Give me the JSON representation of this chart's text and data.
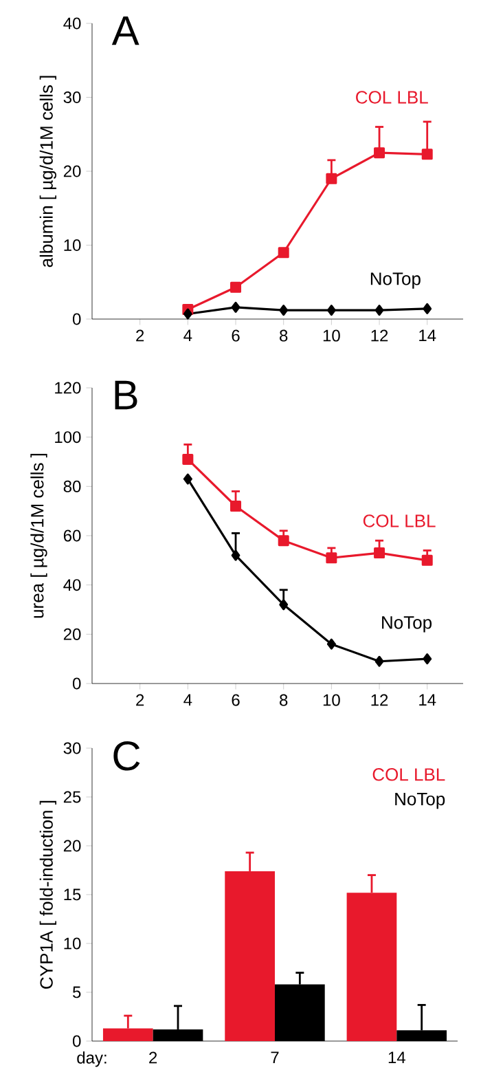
{
  "chart_data": [
    {
      "type": "line",
      "title": "A",
      "ylabel": "albumin  [ µg/d/1M cells ]",
      "x": [
        4,
        6,
        8,
        10,
        12,
        14
      ],
      "xlim": [
        0,
        15.5
      ],
      "xticks": [
        2,
        4,
        6,
        8,
        10,
        12,
        14
      ],
      "ylim": [
        0,
        40
      ],
      "yticks": [
        0,
        10,
        20,
        30,
        40
      ],
      "series": [
        {
          "name": "COL LBL",
          "color": "#e8192c",
          "marker": "square",
          "values": [
            1.3,
            4.3,
            9,
            19,
            22.5,
            22.3
          ],
          "errors": [
            null,
            null,
            null,
            [
              19,
              21.5
            ],
            [
              22.5,
              26
            ],
            [
              22.3,
              26.7
            ]
          ]
        },
        {
          "name": "NoTop",
          "color": "#000000",
          "marker": "diamond",
          "values": [
            0.7,
            1.6,
            1.2,
            1.2,
            1.2,
            1.4
          ]
        }
      ]
    },
    {
      "type": "line",
      "title": "B",
      "ylabel": "urea  [ µg/d/1M cells ]",
      "x": [
        4,
        6,
        8,
        10,
        12,
        14
      ],
      "xlim": [
        0,
        15.5
      ],
      "xticks": [
        2,
        4,
        6,
        8,
        10,
        12,
        14
      ],
      "ylim": [
        0,
        120
      ],
      "yticks": [
        0,
        20,
        40,
        60,
        80,
        100,
        120
      ],
      "series": [
        {
          "name": "COL LBL",
          "color": "#e8192c",
          "marker": "square",
          "values": [
            91,
            72,
            58,
            51,
            53,
            50
          ],
          "errors": [
            [
              91,
              97
            ],
            [
              72,
              78
            ],
            [
              58,
              62
            ],
            [
              51,
              55
            ],
            [
              53,
              58
            ],
            [
              50,
              54
            ]
          ]
        },
        {
          "name": "NoTop",
          "color": "#000000",
          "marker": "diamond",
          "values": [
            83,
            52,
            32,
            16,
            9,
            10
          ],
          "errors": [
            null,
            [
              52,
              61
            ],
            [
              32,
              38
            ],
            null,
            null,
            null
          ]
        }
      ]
    },
    {
      "type": "bar",
      "title": "C",
      "ylabel": "CYP1A  [ fold-induction ]",
      "xlabel": "day:",
      "categories": [
        "2",
        "7",
        "14"
      ],
      "ylim": [
        0,
        30
      ],
      "yticks": [
        0,
        5,
        10,
        15,
        20,
        25,
        30
      ],
      "series": [
        {
          "name": "COL LBL",
          "color": "#e8192c",
          "values": [
            1.3,
            17.4,
            15.2
          ],
          "errors": [
            [
              1.3,
              2.6
            ],
            [
              17.4,
              19.3
            ],
            [
              15.2,
              17
            ]
          ]
        },
        {
          "name": "NoTop",
          "color": "#000000",
          "values": [
            1.2,
            5.8,
            1.1
          ],
          "errors": [
            [
              1.2,
              3.6
            ],
            [
              5.8,
              7
            ],
            [
              1.1,
              3.7
            ]
          ]
        }
      ]
    }
  ]
}
